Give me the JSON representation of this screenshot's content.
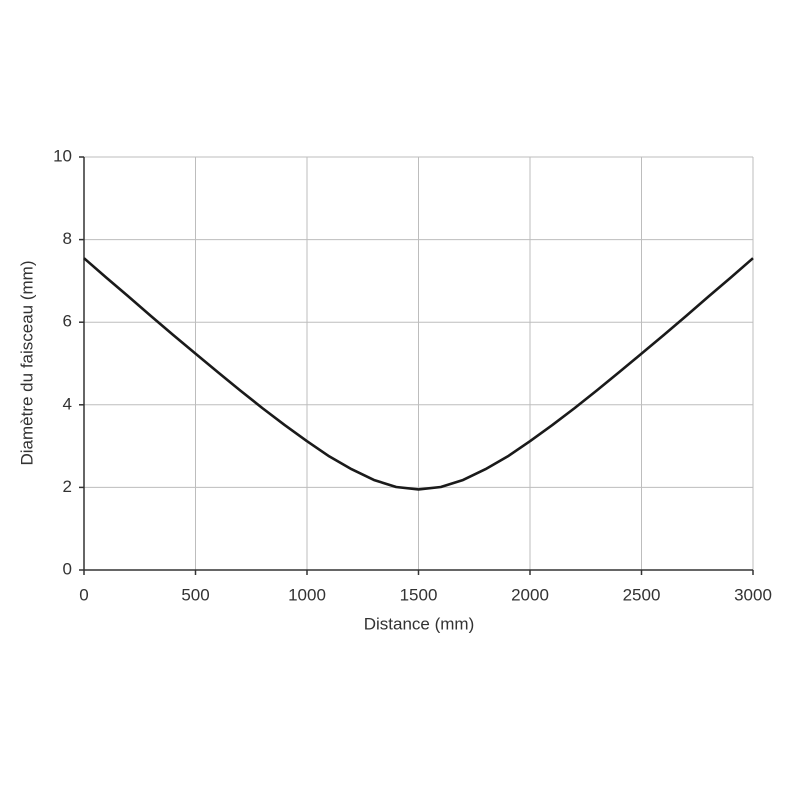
{
  "chart_data": {
    "type": "line",
    "x_label": "Distance (mm)",
    "y_label": "Diamètre du faisceau (mm)",
    "x": [
      0,
      100,
      200,
      300,
      400,
      500,
      600,
      700,
      800,
      900,
      1000,
      1100,
      1200,
      1300,
      1400,
      1500,
      1600,
      1700,
      1800,
      1900,
      2000,
      2100,
      2200,
      2300,
      2400,
      2500,
      2600,
      2700,
      2800,
      2900,
      3000
    ],
    "series": [
      {
        "name": "Diamètre du faisceau",
        "color": "#1a1a1a",
        "values": [
          7.55,
          7.08,
          6.62,
          6.15,
          5.69,
          5.24,
          4.79,
          4.35,
          3.92,
          3.51,
          3.12,
          2.75,
          2.44,
          2.18,
          2.01,
          1.95,
          2.01,
          2.18,
          2.44,
          2.75,
          3.12,
          3.51,
          3.92,
          4.35,
          4.79,
          5.24,
          5.69,
          6.15,
          6.62,
          7.08,
          7.55
        ]
      }
    ],
    "xlim": [
      0,
      3000
    ],
    "xticks": [
      0,
      500,
      1000,
      1500,
      2000,
      2500,
      3000
    ],
    "ylim": [
      0,
      10
    ],
    "yticks": [
      0,
      2,
      4,
      6,
      8,
      10
    ],
    "grid": true
  }
}
